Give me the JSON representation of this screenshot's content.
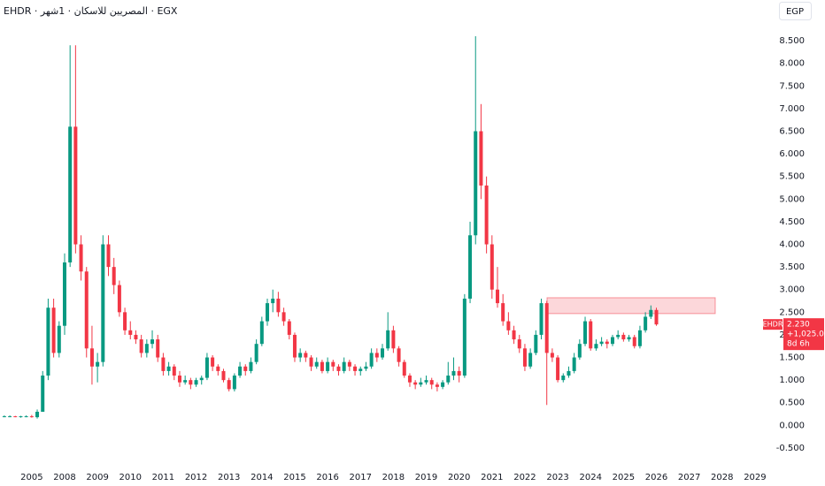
{
  "chart_data": {
    "type": "candlestick",
    "title": "EHDR · المصريين للاسكان · 1شهر · EGX",
    "currency": "EGP",
    "up_color": "#089981",
    "down_color": "#f23645",
    "categories": [
      null,
      null,
      null,
      null,
      null,
      "2005",
      null,
      null,
      null,
      null,
      null,
      "2008",
      null,
      null,
      null,
      null,
      null,
      "2009",
      null,
      null,
      null,
      null,
      null,
      "2010",
      null,
      null,
      null,
      null,
      null,
      "2011",
      null,
      null,
      null,
      null,
      null,
      "2012",
      null,
      null,
      null,
      null,
      null,
      "2013",
      null,
      null,
      null,
      null,
      null,
      "2014",
      null,
      null,
      null,
      null,
      null,
      "2015",
      null,
      null,
      null,
      null,
      null,
      "2016",
      null,
      null,
      null,
      null,
      null,
      "2017",
      null,
      null,
      null,
      null,
      null,
      "2018",
      null,
      null,
      null,
      null,
      null,
      "2019",
      null,
      null,
      null,
      null,
      null,
      "2020",
      null,
      null,
      null,
      null,
      null,
      "2021",
      null,
      null,
      null,
      null,
      null,
      "2022",
      null,
      null,
      null,
      null,
      null,
      "2023",
      null,
      null,
      null,
      null,
      null,
      "2024",
      null,
      null,
      null,
      null,
      null,
      "2025",
      null,
      null,
      null,
      null,
      null,
      "2026",
      null,
      null,
      null,
      null,
      null,
      "2027",
      null,
      null,
      null,
      null,
      null,
      "2028",
      null,
      null,
      null,
      null,
      null,
      "2029"
    ],
    "open": [
      0.2,
      0.2,
      0.2,
      0.19,
      0.2,
      0.2,
      0.18,
      0.3,
      1.1,
      2.6,
      1.6,
      2.2,
      3.6,
      6.6,
      4.0,
      3.4,
      1.7,
      1.3,
      1.4,
      4.0,
      3.5,
      3.1,
      2.5,
      2.1,
      2.0,
      1.9,
      1.6,
      1.8,
      1.9,
      1.5,
      1.2,
      1.3,
      1.1,
      0.95,
      1.0,
      0.9,
      1.0,
      1.05,
      1.5,
      1.3,
      1.2,
      1.0,
      0.8,
      1.1,
      1.3,
      1.2,
      1.4,
      1.8,
      2.3,
      2.7,
      2.8,
      2.5,
      2.3,
      2.0,
      1.5,
      1.6,
      1.5,
      1.3,
      1.4,
      1.2,
      1.4,
      1.3,
      1.2,
      1.4,
      1.3,
      1.2,
      1.25,
      1.3,
      1.6,
      1.5,
      1.7,
      2.1,
      1.7,
      1.4,
      1.1,
      0.95,
      0.9,
      0.95,
      1.0,
      0.9,
      0.85,
      0.95,
      1.1,
      1.2,
      1.1,
      2.8,
      4.2,
      6.5,
      5.3,
      4.0,
      3.0,
      2.7,
      2.3,
      2.1,
      1.9,
      1.7,
      1.3,
      1.6,
      2.0,
      2.7,
      1.6,
      1.5,
      1.0,
      1.1,
      1.2,
      1.5,
      1.8,
      2.3,
      1.7,
      1.8,
      1.85,
      1.8,
      1.95,
      2.0,
      1.9,
      1.95,
      1.75,
      2.1,
      2.4,
      2.55,
      null,
      null,
      null,
      null,
      null,
      null,
      null,
      null,
      null,
      null,
      null,
      null,
      null,
      null,
      null,
      null,
      null,
      null
    ],
    "high": [
      0.22,
      0.22,
      0.21,
      0.21,
      0.22,
      0.23,
      0.35,
      1.2,
      2.8,
      2.8,
      2.3,
      3.8,
      8.4,
      8.4,
      4.2,
      3.5,
      2.2,
      1.6,
      4.2,
      4.2,
      3.7,
      3.2,
      2.6,
      2.3,
      2.1,
      2.0,
      1.9,
      2.1,
      2.0,
      1.6,
      1.4,
      1.35,
      1.2,
      1.1,
      1.05,
      1.05,
      1.1,
      1.6,
      1.55,
      1.35,
      1.25,
      1.05,
      1.15,
      1.4,
      1.35,
      1.5,
      1.9,
      2.4,
      2.8,
      3.0,
      2.95,
      2.6,
      2.35,
      2.05,
      1.7,
      1.65,
      1.55,
      1.5,
      1.45,
      1.5,
      1.45,
      1.35,
      1.5,
      1.45,
      1.35,
      1.3,
      1.4,
      1.7,
      1.7,
      1.8,
      2.5,
      2.2,
      1.75,
      1.45,
      1.15,
      1.0,
      1.05,
      1.1,
      1.05,
      0.95,
      1.0,
      1.4,
      1.5,
      1.3,
      2.9,
      4.5,
      8.6,
      7.1,
      5.5,
      4.2,
      3.5,
      2.9,
      2.5,
      2.2,
      2.0,
      1.8,
      1.7,
      2.1,
      2.8,
      2.75,
      1.7,
      1.55,
      1.15,
      1.3,
      1.6,
      1.9,
      2.4,
      2.35,
      1.9,
      1.95,
      1.9,
      2.0,
      2.1,
      2.05,
      2.0,
      2.0,
      2.2,
      2.5,
      2.65,
      2.6,
      null,
      null,
      null,
      null,
      null,
      null,
      null,
      null,
      null,
      null,
      null,
      null,
      null,
      null,
      null,
      null,
      null,
      null
    ],
    "low": [
      0.18,
      0.18,
      0.18,
      0.17,
      0.18,
      0.17,
      0.15,
      0.3,
      1.0,
      1.5,
      1.5,
      2.0,
      3.5,
      3.8,
      3.2,
      1.5,
      0.9,
      0.95,
      1.3,
      3.3,
      2.9,
      2.4,
      2.0,
      1.9,
      1.8,
      1.5,
      1.5,
      1.7,
      1.4,
      1.1,
      1.1,
      1.0,
      0.85,
      0.9,
      0.8,
      0.85,
      0.9,
      1.0,
      1.2,
      1.1,
      0.95,
      0.75,
      0.75,
      1.05,
      1.1,
      1.15,
      1.35,
      1.75,
      2.2,
      2.5,
      2.4,
      2.2,
      1.9,
      1.4,
      1.4,
      1.4,
      1.2,
      1.25,
      1.15,
      1.15,
      1.2,
      1.1,
      1.15,
      1.2,
      1.1,
      1.1,
      1.2,
      1.25,
      1.4,
      1.45,
      1.65,
      1.6,
      1.3,
      1.05,
      0.85,
      0.8,
      0.85,
      0.9,
      0.8,
      0.75,
      0.8,
      0.9,
      1.0,
      0.95,
      1.05,
      2.7,
      4.0,
      5.0,
      3.8,
      2.8,
      2.6,
      2.2,
      2.0,
      1.8,
      1.6,
      1.2,
      1.25,
      1.55,
      1.9,
      0.45,
      1.4,
      0.95,
      0.95,
      1.05,
      1.15,
      1.45,
      1.75,
      1.65,
      1.65,
      1.75,
      1.7,
      1.75,
      1.9,
      1.85,
      1.85,
      1.7,
      1.7,
      2.05,
      2.35,
      2.2,
      null,
      null,
      null,
      null,
      null,
      null,
      null,
      null,
      null,
      null,
      null,
      null,
      null,
      null,
      null,
      null,
      null,
      null
    ],
    "close": [
      0.2,
      0.2,
      0.19,
      0.2,
      0.2,
      0.18,
      0.3,
      1.1,
      2.6,
      1.6,
      2.2,
      3.6,
      6.6,
      4.0,
      3.4,
      1.7,
      1.3,
      1.4,
      4.0,
      3.5,
      3.1,
      2.5,
      2.1,
      2.0,
      1.9,
      1.6,
      1.8,
      1.9,
      1.5,
      1.2,
      1.3,
      1.1,
      0.95,
      1.0,
      0.9,
      1.0,
      1.05,
      1.5,
      1.3,
      1.2,
      1.0,
      0.8,
      1.1,
      1.3,
      1.2,
      1.4,
      1.8,
      2.3,
      2.7,
      2.8,
      2.5,
      2.3,
      2.0,
      1.5,
      1.6,
      1.5,
      1.3,
      1.4,
      1.2,
      1.4,
      1.3,
      1.2,
      1.4,
      1.3,
      1.2,
      1.25,
      1.3,
      1.6,
      1.5,
      1.7,
      2.1,
      1.7,
      1.4,
      1.1,
      0.95,
      0.9,
      0.95,
      1.0,
      0.9,
      0.85,
      0.95,
      1.1,
      1.2,
      1.1,
      2.8,
      4.2,
      6.5,
      5.3,
      4.0,
      3.0,
      2.7,
      2.3,
      2.1,
      1.9,
      1.7,
      1.3,
      1.6,
      2.0,
      2.7,
      1.6,
      1.5,
      1.0,
      1.1,
      1.2,
      1.5,
      1.8,
      2.3,
      1.7,
      1.8,
      1.85,
      1.8,
      1.95,
      2.0,
      1.9,
      1.95,
      1.75,
      2.1,
      2.4,
      2.55,
      2.23,
      null,
      null,
      null,
      null,
      null,
      null,
      null,
      null,
      null,
      null,
      null,
      null,
      null,
      null,
      null,
      null,
      null,
      null
    ],
    "ylim": [
      -0.95,
      9.4
    ],
    "yticks": [
      {
        "value": -0.5,
        "label": "-0.500"
      },
      {
        "value": 0,
        "label": "0.000"
      },
      {
        "value": 0.5,
        "label": "0.500"
      },
      {
        "value": 1,
        "label": "1.000"
      },
      {
        "value": 1.5,
        "label": "1.500"
      },
      {
        "value": 2,
        "label": "2.000"
      },
      {
        "value": 2.5,
        "label": "2.500"
      },
      {
        "value": 3,
        "label": "3.000"
      },
      {
        "value": 3.5,
        "label": "3.500"
      },
      {
        "value": 4,
        "label": "4.000"
      },
      {
        "value": 4.5,
        "label": "4.500"
      },
      {
        "value": 5,
        "label": "5.000"
      },
      {
        "value": 5.5,
        "label": "5.500"
      },
      {
        "value": 6,
        "label": "6.000"
      },
      {
        "value": 6.5,
        "label": "6.500"
      },
      {
        "value": 7,
        "label": "7.000"
      },
      {
        "value": 7.5,
        "label": "7.500"
      },
      {
        "value": 8,
        "label": "8.000"
      },
      {
        "value": 8.5,
        "label": "8.500"
      }
    ],
    "zone": {
      "low": 2.47,
      "high": 2.82,
      "color": "#f23645"
    },
    "price_tag": {
      "symbol": "EHDR",
      "value": 2.23,
      "label": "2.230",
      "change": "+1,025.05%",
      "countdown": "8d 6h"
    }
  }
}
